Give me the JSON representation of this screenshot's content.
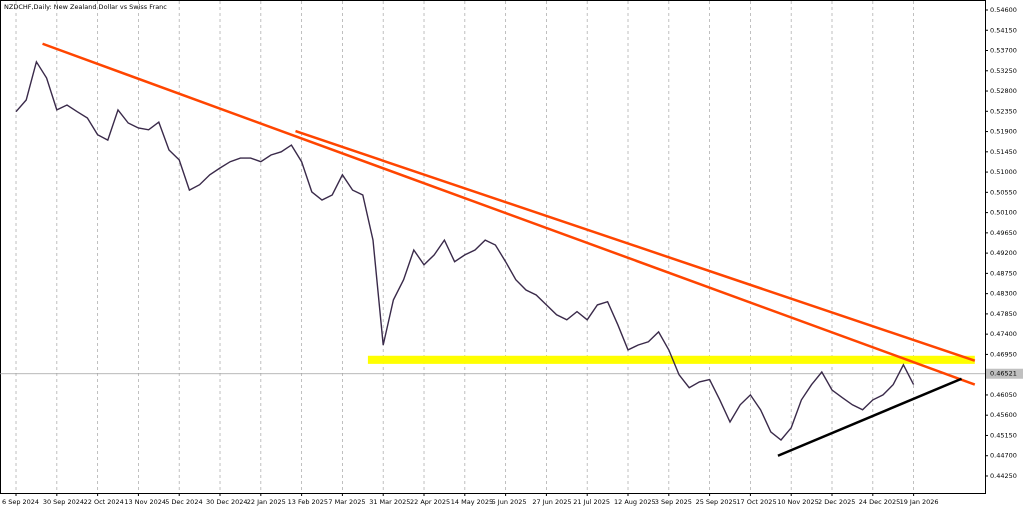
{
  "chart_data": {
    "type": "line",
    "title": "NZDCHF,Daily:  New Zealand Dollar vs Swiss Franc",
    "categories": [
      "6 Sep 2024",
      null,
      null,
      null,
      "30 Sep 2024",
      null,
      null,
      null,
      "22 Oct 2024",
      null,
      null,
      null,
      "13 Nov 2024",
      null,
      null,
      null,
      "5 Dec 2024",
      null,
      null,
      null,
      "30 Dec 2024",
      null,
      null,
      null,
      "22 Jan 2025",
      null,
      null,
      null,
      "13 Feb 2025",
      null,
      null,
      null,
      "7 Mar 2025",
      null,
      null,
      null,
      "31 Mar 2025",
      null,
      null,
      null,
      "22 Apr 2025",
      null,
      null,
      null,
      "14 May 2025",
      null,
      null,
      null,
      "5 Jun 2025",
      null,
      null,
      null,
      "27 Jun 2025",
      null,
      null,
      null,
      "21 Jul 2025",
      null,
      null,
      null,
      "12 Aug 2025",
      null,
      null,
      null,
      "3 Sep 2025",
      null,
      null,
      null,
      "25 Sep 2025",
      null,
      null,
      null,
      "17 Oct 2025",
      null,
      null,
      null,
      "10 Nov 2025",
      null,
      null,
      null,
      "2 Dec 2025",
      null,
      null,
      null,
      "24 Dec 2025",
      null,
      null,
      null,
      "19 Jan 2026"
    ],
    "series": [
      {
        "color": "#3a2a4a",
        "values": [
          0.5234,
          0.526,
          0.5345,
          0.5309,
          0.5238,
          0.5249,
          0.5234,
          0.522,
          0.5183,
          0.5171,
          0.5238,
          0.5209,
          0.5198,
          0.5194,
          0.5211,
          0.5149,
          0.5127,
          0.506,
          0.5072,
          0.5094,
          0.5109,
          0.5123,
          0.5131,
          0.5131,
          0.5123,
          0.5138,
          0.5145,
          0.516,
          0.5123,
          0.5056,
          0.5038,
          0.5049,
          0.5094,
          0.506,
          0.5049,
          0.4949,
          0.4716,
          0.4816,
          0.4861,
          0.4927,
          0.4894,
          0.4916,
          0.4949,
          0.4901,
          0.4916,
          0.4927,
          0.4949,
          0.4938,
          0.4901,
          0.4861,
          0.4838,
          0.4827,
          0.4805,
          0.4783,
          0.4772,
          0.479,
          0.4772,
          0.4805,
          0.4812,
          0.4761,
          0.4705,
          0.4716,
          0.4723,
          0.4745,
          0.4705,
          0.465,
          0.4621,
          0.4634,
          0.4639,
          0.4594,
          0.4545,
          0.4583,
          0.4605,
          0.4572,
          0.4523,
          0.4505,
          0.4532,
          0.4594,
          0.4628,
          0.4656,
          0.4616,
          0.4599,
          0.4583,
          0.4572,
          0.4594,
          0.4605,
          0.4628,
          0.4672,
          0.4628
        ]
      }
    ],
    "lines": [
      {
        "color": "#ff4500",
        "x": [
          2.6,
          94
        ],
        "values": [
          0.5385,
          0.4628
        ]
      },
      {
        "color": "#ff4500",
        "x": [
          27.4,
          94
        ],
        "values": [
          0.5191,
          0.4681
        ]
      },
      {
        "color": "#000000",
        "x": [
          74.7,
          92.7
        ],
        "values": [
          0.447,
          0.4641
        ]
      }
    ],
    "band": {
      "color": "#ffff00",
      "x": [
        34.5,
        94
      ],
      "values": [
        0.4674,
        0.4692
      ]
    },
    "current_price": {
      "value": 0.46521,
      "label": "0.46521"
    },
    "xlim": [
      -1.57,
      95
    ],
    "ylim": [
      0.43872,
      0.54822
    ],
    "yticks": [
      {
        "value": 0.546,
        "label": "0.54600"
      },
      {
        "value": 0.5415,
        "label": "0.54150"
      },
      {
        "value": 0.537,
        "label": "0.53700"
      },
      {
        "value": 0.5325,
        "label": "0.53250"
      },
      {
        "value": 0.528,
        "label": "0.52800"
      },
      {
        "value": 0.5235,
        "label": "0.52350"
      },
      {
        "value": 0.519,
        "label": "0.51900"
      },
      {
        "value": 0.5145,
        "label": "0.51450"
      },
      {
        "value": 0.51,
        "label": "0.51000"
      },
      {
        "value": 0.5055,
        "label": "0.50550"
      },
      {
        "value": 0.501,
        "label": "0.50100"
      },
      {
        "value": 0.4965,
        "label": "0.49650"
      },
      {
        "value": 0.492,
        "label": "0.49200"
      },
      {
        "value": 0.4875,
        "label": "0.48750"
      },
      {
        "value": 0.483,
        "label": "0.48300"
      },
      {
        "value": 0.4785,
        "label": "0.47850"
      },
      {
        "value": 0.474,
        "label": "0.47400"
      },
      {
        "value": 0.4695,
        "label": "0.46950"
      },
      {
        "value": 0.4605,
        "label": "0.46050"
      },
      {
        "value": 0.456,
        "label": "0.45600"
      },
      {
        "value": 0.4515,
        "label": "0.45150"
      },
      {
        "value": 0.447,
        "label": "0.44700"
      },
      {
        "value": 0.4425,
        "label": "0.44250"
      }
    ],
    "grid": true
  }
}
